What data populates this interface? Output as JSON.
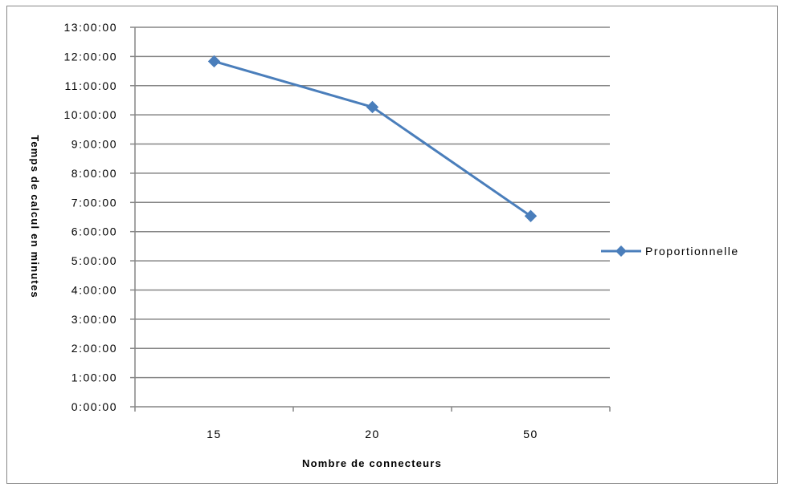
{
  "chart_data": {
    "type": "line",
    "title": "",
    "xlabel": "Nombre de connecteurs",
    "ylabel": "Temps de calcul en minutes",
    "categories": [
      "15",
      "20",
      "50"
    ],
    "y_tick_labels": [
      "0:00:00",
      "1:00:00",
      "2:00:00",
      "3:00:00",
      "4:00:00",
      "5:00:00",
      "6:00:00",
      "7:00:00",
      "8:00:00",
      "9:00:00",
      "10:00:00",
      "11:00:00",
      "12:00:00",
      "13:00:00"
    ],
    "ylim_hours": [
      0,
      13
    ],
    "grid": "horizontal",
    "legend_position": "right",
    "series": [
      {
        "name": "Proportionnelle",
        "values": [
          "11:50:00",
          "10:16:00",
          "6:32:00"
        ],
        "values_hours": [
          11.833,
          10.267,
          6.533
        ],
        "color": "#4a7ebb"
      }
    ]
  }
}
